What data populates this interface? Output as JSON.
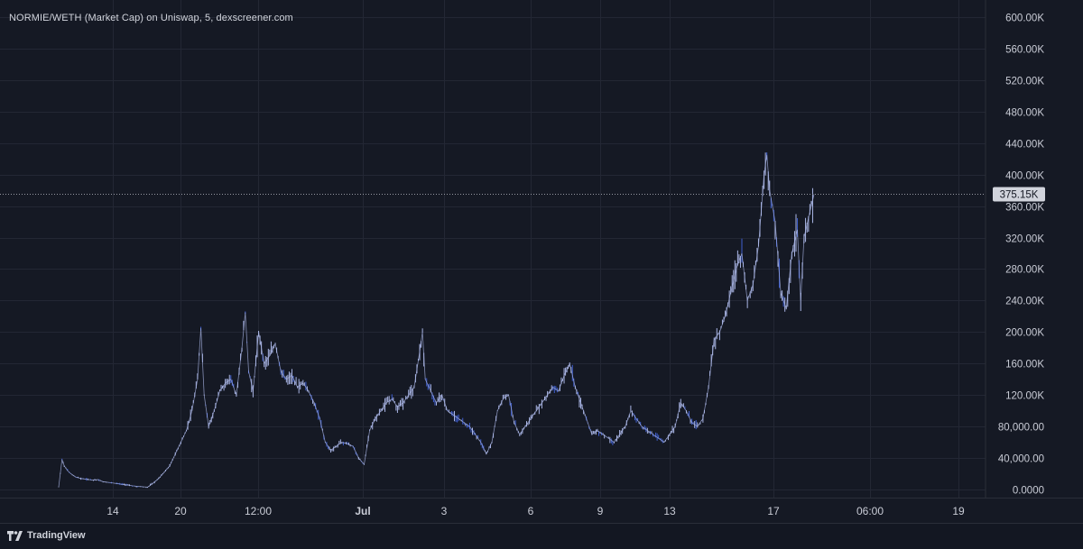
{
  "header": {
    "title": "NORMIE/WETH (Market Cap) on Uniswap, 5, dexscreener.com"
  },
  "footer": {
    "brand": "TradingView",
    "logo_icon": "tradingview-logo-icon"
  },
  "colors": {
    "background": "#151924",
    "grid": "#232734",
    "candle": "#aab6e6",
    "candle_down": "#3f5fd1",
    "axis_text": "#c9ccd6",
    "last_price_badge": "#d1d4dc"
  },
  "chart_data": {
    "type": "line",
    "title": "NORMIE/WETH (Market Cap) on Uniswap, 5, dexscreener.com",
    "xlabel": "",
    "ylabel": "",
    "ylim": [
      0,
      600000
    ],
    "grid": true,
    "x_tick_labels": [
      "14",
      "20",
      "12:00",
      "Jul",
      "3",
      "6",
      "9",
      "13",
      "17",
      "06:00",
      "19"
    ],
    "y_tick_labels": [
      "0.0000",
      "40,000.00",
      "80,000.00",
      "120.00K",
      "160.00K",
      "200.00K",
      "240.00K",
      "280.00K",
      "320.00K",
      "360.00K",
      "400.00K",
      "440.00K",
      "480.00K",
      "520.00K",
      "560.00K",
      "600.00K"
    ],
    "y_ticks": [
      0,
      40000,
      80000,
      120000,
      160000,
      200000,
      240000,
      280000,
      320000,
      360000,
      400000,
      440000,
      480000,
      520000,
      560000,
      600000
    ],
    "last_value": 375150,
    "last_value_label": "375.15K",
    "series": [
      {
        "points": [
          [
            0,
            3000
          ],
          [
            0.6,
            38000
          ],
          [
            1,
            30000
          ],
          [
            1.6,
            24000
          ],
          [
            2.2,
            20000
          ],
          [
            3,
            16000
          ],
          [
            4,
            14000
          ],
          [
            5,
            13000
          ],
          [
            6,
            12000
          ],
          [
            7,
            12500
          ],
          [
            8,
            10000
          ],
          [
            9,
            9000
          ],
          [
            10,
            8000
          ],
          [
            11,
            7000
          ],
          [
            12,
            6000
          ],
          [
            13,
            5000
          ],
          [
            14,
            4000
          ],
          [
            15,
            3500
          ],
          [
            16,
            3000
          ],
          [
            17,
            8000
          ],
          [
            18,
            14000
          ],
          [
            19,
            22000
          ],
          [
            20,
            30000
          ],
          [
            21,
            45000
          ],
          [
            22,
            60000
          ],
          [
            23,
            75000
          ],
          [
            24,
            100000
          ],
          [
            25,
            140000
          ],
          [
            25.6,
            205000
          ],
          [
            26.2,
            120000
          ],
          [
            27,
            80000
          ],
          [
            28,
            100000
          ],
          [
            29,
            125000
          ],
          [
            30,
            135000
          ],
          [
            31,
            140000
          ],
          [
            32,
            120000
          ],
          [
            33,
            180000
          ],
          [
            33.6,
            225000
          ],
          [
            34.2,
            150000
          ],
          [
            35,
            125000
          ],
          [
            36,
            200000
          ],
          [
            37,
            160000
          ],
          [
            38,
            170000
          ],
          [
            39,
            185000
          ],
          [
            40,
            150000
          ],
          [
            41,
            140000
          ],
          [
            42,
            145000
          ],
          [
            43,
            130000
          ],
          [
            44,
            135000
          ],
          [
            45,
            125000
          ],
          [
            46,
            110000
          ],
          [
            47,
            90000
          ],
          [
            48,
            60000
          ],
          [
            49,
            50000
          ],
          [
            50,
            55000
          ],
          [
            51,
            60000
          ],
          [
            52,
            58000
          ],
          [
            53,
            55000
          ],
          [
            54,
            40000
          ],
          [
            55,
            32000
          ],
          [
            56,
            75000
          ],
          [
            57,
            90000
          ],
          [
            58,
            100000
          ],
          [
            59,
            110000
          ],
          [
            60,
            115000
          ],
          [
            61,
            105000
          ],
          [
            62,
            110000
          ],
          [
            63,
            120000
          ],
          [
            64,
            130000
          ],
          [
            65,
            175000
          ],
          [
            65.5,
            200000
          ],
          [
            66,
            140000
          ],
          [
            67,
            125000
          ],
          [
            68,
            110000
          ],
          [
            69,
            120000
          ],
          [
            70,
            100000
          ],
          [
            71,
            95000
          ],
          [
            72,
            90000
          ],
          [
            73,
            85000
          ],
          [
            74,
            80000
          ],
          [
            75,
            70000
          ],
          [
            76,
            60000
          ],
          [
            77,
            45000
          ],
          [
            78,
            60000
          ],
          [
            79,
            100000
          ],
          [
            80,
            115000
          ],
          [
            81,
            120000
          ],
          [
            82,
            85000
          ],
          [
            83,
            70000
          ],
          [
            84,
            80000
          ],
          [
            85,
            90000
          ],
          [
            86,
            100000
          ],
          [
            87,
            110000
          ],
          [
            88,
            120000
          ],
          [
            89,
            130000
          ],
          [
            90,
            125000
          ],
          [
            91,
            145000
          ],
          [
            92,
            160000
          ],
          [
            93,
            130000
          ],
          [
            94,
            110000
          ],
          [
            95,
            90000
          ],
          [
            96,
            70000
          ],
          [
            97,
            75000
          ],
          [
            98,
            70000
          ],
          [
            99,
            65000
          ],
          [
            100,
            60000
          ],
          [
            101,
            70000
          ],
          [
            102,
            80000
          ],
          [
            103,
            100000
          ],
          [
            104,
            90000
          ],
          [
            105,
            80000
          ],
          [
            106,
            75000
          ],
          [
            107,
            70000
          ],
          [
            108,
            65000
          ],
          [
            109,
            60000
          ],
          [
            110,
            70000
          ],
          [
            111,
            80000
          ],
          [
            112,
            110000
          ],
          [
            113,
            100000
          ],
          [
            114,
            85000
          ],
          [
            115,
            80000
          ],
          [
            116,
            90000
          ],
          [
            117,
            130000
          ],
          [
            118,
            190000
          ],
          [
            119,
            200000
          ],
          [
            120,
            220000
          ],
          [
            121,
            250000
          ],
          [
            122,
            280000
          ],
          [
            123,
            300000
          ],
          [
            124,
            240000
          ],
          [
            125,
            260000
          ],
          [
            126,
            310000
          ],
          [
            127,
            400000
          ],
          [
            127.5,
            425000
          ],
          [
            128,
            380000
          ],
          [
            129,
            340000
          ],
          [
            130,
            250000
          ],
          [
            131,
            230000
          ],
          [
            132,
            300000
          ],
          [
            133,
            330000
          ],
          [
            133.6,
            240000
          ],
          [
            134.2,
            320000
          ],
          [
            135,
            345000
          ],
          [
            136,
            375150
          ]
        ]
      }
    ]
  }
}
